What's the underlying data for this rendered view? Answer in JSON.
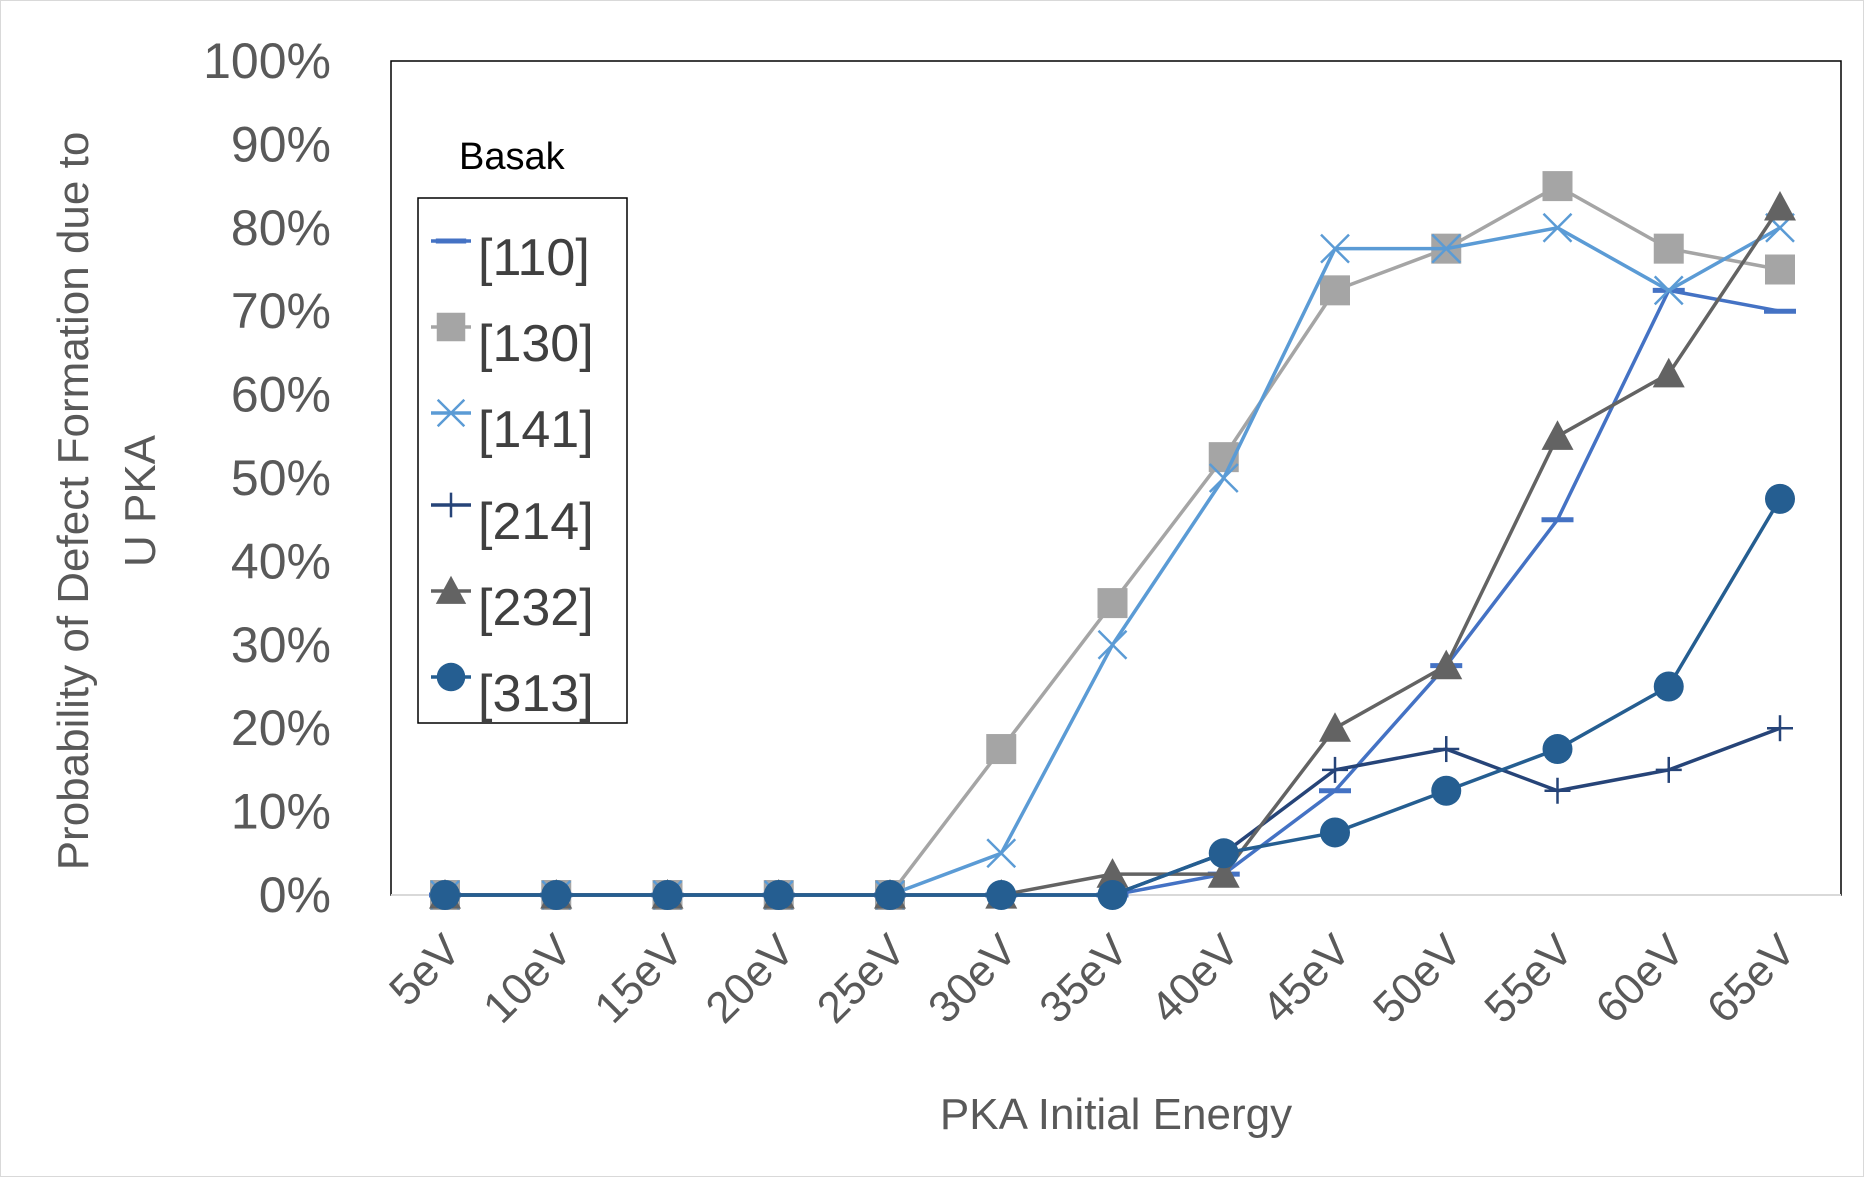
{
  "chart_data": {
    "type": "line",
    "title": "",
    "xlabel": "PKA Initial Energy",
    "ylabel": "Probability of Defect Formation due to U PKA",
    "ylabel_lines": [
      "Probability of Defect Formation due to",
      "U PKA"
    ],
    "categories": [
      "5eV",
      "10eV",
      "15eV",
      "20eV",
      "25eV",
      "30eV",
      "35eV",
      "40eV",
      "45eV",
      "50eV",
      "55eV",
      "60eV",
      "65eV"
    ],
    "ylim": [
      0,
      1
    ],
    "yticks": [
      0,
      0.1,
      0.2,
      0.3,
      0.4,
      0.5,
      0.6,
      0.7,
      0.8,
      0.9,
      1.0
    ],
    "ytick_labels": [
      "0%",
      "10%",
      "20%",
      "30%",
      "40%",
      "50%",
      "60%",
      "70%",
      "80%",
      "90%",
      "100%"
    ],
    "grid": false,
    "legend_title": "Basak",
    "legend_position": "left inside plot area",
    "series": [
      {
        "name": "[110]",
        "marker": "dash",
        "color": "#4472c4",
        "values": [
          0,
          0,
          0,
          0,
          0,
          0,
          0,
          0.025,
          0.125,
          0.275,
          0.45,
          0.725,
          0.7
        ]
      },
      {
        "name": "[130]",
        "marker": "square",
        "color": "#a5a5a5",
        "values": [
          0,
          0,
          0,
          0,
          0,
          0.175,
          0.35,
          0.525,
          0.725,
          0.775,
          0.85,
          0.775,
          0.75
        ]
      },
      {
        "name": "[141]",
        "marker": "x",
        "color": "#5b9bd5",
        "values": [
          0,
          0,
          0,
          0,
          0,
          0.05,
          0.3,
          0.5,
          0.775,
          0.775,
          0.8,
          0.725,
          0.8
        ]
      },
      {
        "name": "[214]",
        "marker": "plus",
        "color": "#264478",
        "values": [
          0,
          0,
          0,
          0,
          0,
          0,
          0,
          0.05,
          0.15,
          0.175,
          0.125,
          0.15,
          0.2
        ]
      },
      {
        "name": "[232]",
        "marker": "triangle",
        "color": "#636363",
        "values": [
          0,
          0,
          0,
          0,
          0,
          0,
          0.025,
          0.025,
          0.2,
          0.275,
          0.55,
          0.625,
          0.825
        ]
      },
      {
        "name": "[313]",
        "marker": "circle",
        "color": "#255e91",
        "values": [
          0,
          0,
          0,
          0,
          0,
          0,
          0,
          0.05,
          0.075,
          0.125,
          0.175,
          0.25,
          0.475
        ]
      }
    ]
  }
}
